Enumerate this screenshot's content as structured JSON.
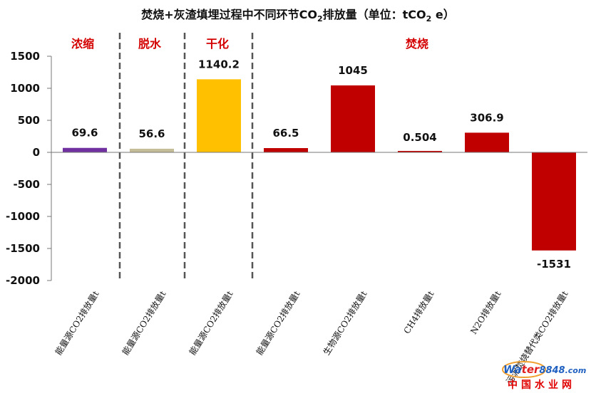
{
  "chart_data": {
    "type": "bar",
    "title": "焚烧+灰渣填埋过程中不同环节CO",
    "title_sub": "2",
    "title_rest": "排放量（单位：tCO",
    "title_sub2": "2",
    "title_end": " e）",
    "categories": [
      "能量源CO2排放量t",
      "能量源CO2排放量t",
      "能量源CO2排放量t",
      "能量源CO2排放量t",
      "生物源CO2排放量t",
      "CH4排放量t",
      "N2O排放量t",
      "污泥焚烧替代类CO2排放量t"
    ],
    "values": [
      69.6,
      56.6,
      1140.2,
      66.5,
      1045,
      0.504,
      306.9,
      -1531
    ],
    "value_labels": [
      "69.6",
      "56.6",
      "1140.2",
      "66.5",
      "1045",
      "0.504",
      "306.9",
      "-1531"
    ],
    "bar_colors": [
      "#7030a0",
      "#c4bd97",
      "#ffc000",
      "#c00000",
      "#c00000",
      "#c00000",
      "#c00000",
      "#c00000"
    ],
    "ylim": [
      -2000,
      1500
    ],
    "yticks": [
      "1500",
      "1000",
      "500",
      "0",
      "-500",
      "-1000",
      "-1500",
      "-2000"
    ],
    "ytick_values": [
      1500,
      1000,
      500,
      0,
      -500,
      -1000,
      -1500,
      -2000
    ],
    "stages": [
      "浓缩",
      "脱水",
      "干化",
      "焚烧"
    ],
    "stage_color": "#d40000",
    "grid": false
  },
  "watermark": {
    "brand_a": "Wa",
    "brand_b": "ter",
    "brand_c": "8848",
    "brand_d": ".com",
    "cn": "中国水业网"
  }
}
